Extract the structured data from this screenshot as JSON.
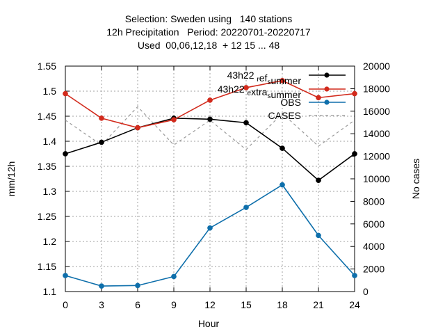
{
  "chart_data": {
    "type": "line",
    "title_lines": [
      "Selection: Sweden using   140 stations",
      "12h Precipitation   Period: 20220701-20220717",
      "Used  00,06,12,18  + 12 15 ... 48"
    ],
    "xlabel": "Hour",
    "ylabel": "mm/12h",
    "y2label": "No cases",
    "x": [
      0,
      3,
      6,
      9,
      12,
      15,
      18,
      21,
      24
    ],
    "xlim": [
      0,
      24
    ],
    "ylim": [
      1.1,
      1.55
    ],
    "y2lim": [
      0,
      20000
    ],
    "x_ticks": [
      "0",
      "3",
      "6",
      "9",
      "12",
      "15",
      "18",
      "21",
      "24"
    ],
    "y_ticks": [
      "1.1",
      "1.15",
      "1.2",
      "1.25",
      "1.3",
      "1.35",
      "1.4",
      "1.45",
      "1.5",
      "1.55"
    ],
    "y2_ticks": [
      "0",
      "2000",
      "4000",
      "6000",
      "8000",
      "10000",
      "12000",
      "14000",
      "16000",
      "18000",
      "20000"
    ],
    "grid": true,
    "legend_position": "top-right",
    "series": [
      {
        "name": "43h22_ref_summer",
        "legend_base": "43h22",
        "legend_sub1": "r",
        "legend_mid": "ef",
        "legend_sub2": "s",
        "legend_tail": "ummer",
        "axis": "y",
        "color": "#000000",
        "dashed": false,
        "values": [
          1.375,
          1.398,
          1.427,
          1.446,
          1.444,
          1.437,
          1.386,
          1.322,
          1.375
        ]
      },
      {
        "name": "43h22_extra_summer",
        "legend_base": "43h22",
        "legend_sub1": "e",
        "legend_mid": "xtra",
        "legend_sub2": "s",
        "legend_tail": "ummer",
        "axis": "y",
        "color": "#d22a1c",
        "dashed": false,
        "values": [
          1.495,
          1.446,
          1.427,
          1.443,
          1.482,
          1.507,
          1.521,
          1.487,
          1.495
        ]
      },
      {
        "name": "OBS",
        "legend_base": "OBS",
        "axis": "y",
        "color": "#0e6fab",
        "dashed": false,
        "values": [
          1.132,
          1.111,
          1.112,
          1.13,
          1.227,
          1.268,
          1.313,
          1.212,
          1.132
        ]
      },
      {
        "name": "CASES",
        "legend_base": "CASES",
        "axis": "y2",
        "color": "#999999",
        "dashed": true,
        "values": [
          15200,
          13000,
          16400,
          13000,
          15200,
          12600,
          15800,
          12900,
          15200
        ]
      }
    ]
  }
}
